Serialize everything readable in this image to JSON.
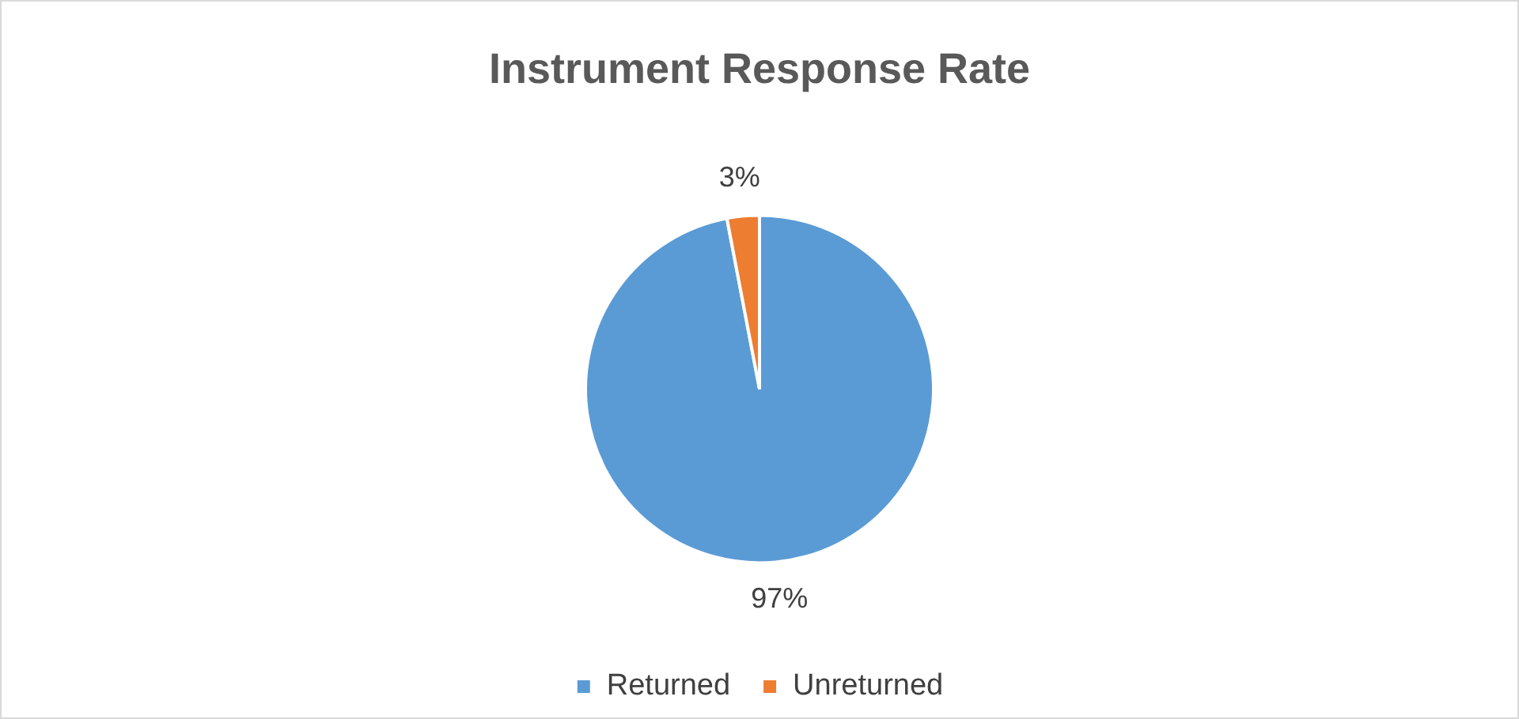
{
  "chart_data": {
    "type": "pie",
    "title": "Instrument Response Rate",
    "categories": [
      "Returned",
      "Unreturned"
    ],
    "values": [
      97,
      3
    ],
    "colors": [
      "#5b9bd5",
      "#ed7d31"
    ],
    "value_labels": [
      "97%",
      "3%"
    ],
    "legend": "bottom"
  }
}
